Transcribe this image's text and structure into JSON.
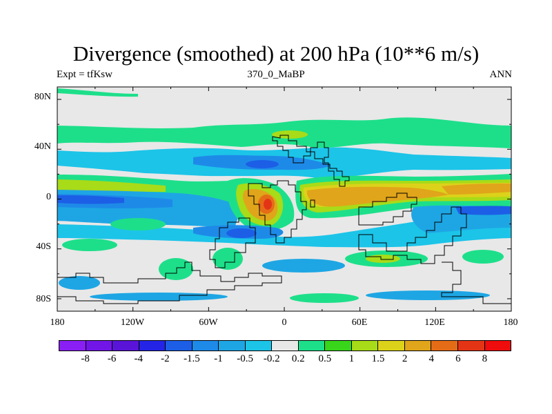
{
  "title": "Divergence (smoothed) at 200 hPa (10**6 m/s)",
  "subtitle_left": "Expt = tfKsw",
  "subtitle_center": "370_0_MaBP",
  "subtitle_right": "ANN",
  "map": {
    "projection": "cylindrical equidistant",
    "variable": "Divergence (smoothed)",
    "level": "200 hPa",
    "x_ticks": [
      "180",
      "120W",
      "60W",
      "0",
      "60E",
      "120E",
      "180"
    ],
    "y_ticks": [
      "80N",
      "40N",
      "0",
      "40S",
      "80S"
    ],
    "lon_range": [
      -180,
      180
    ],
    "lat_range": [
      -90,
      90
    ]
  },
  "colorbar": {
    "labels": [
      "-8",
      "-6",
      "-4",
      "-2",
      "-1.5",
      "-1",
      "-0.5",
      "-0.2",
      "0.2",
      "0.5",
      "1",
      "1.5",
      "2",
      "4",
      "6",
      "8"
    ],
    "colors": [
      "#8a1ff5",
      "#7216e8",
      "#5a14d8",
      "#2424e6",
      "#1c5ee6",
      "#1e8ae8",
      "#1ea6e4",
      "#1cc4e8",
      "#e8e8e8",
      "#1ddf8a",
      "#38d51b",
      "#a8db18",
      "#dcd21a",
      "#e0a51a",
      "#e56c17",
      "#e33516",
      "#ee0c0c"
    ]
  }
}
